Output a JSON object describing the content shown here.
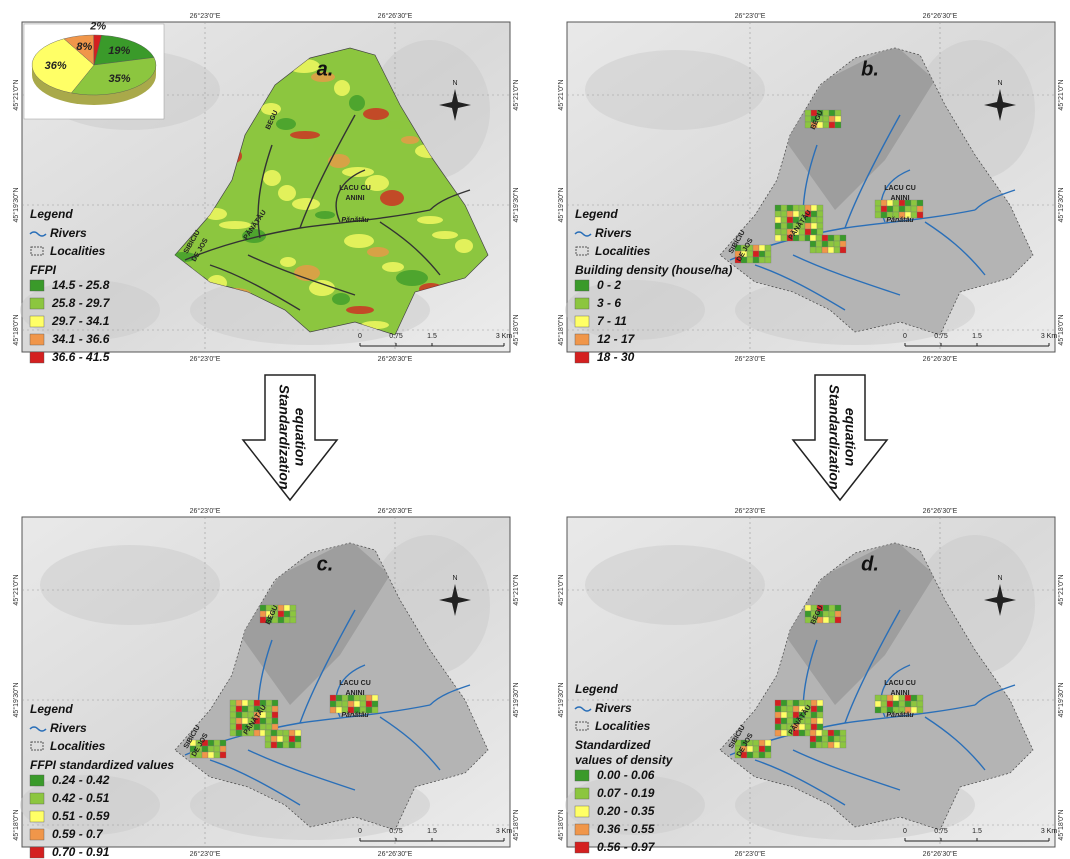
{
  "panels": [
    {
      "letter": "a.",
      "basin_color": "#8cc63f",
      "river_color": "#333333",
      "lon_labels": [
        "26°23'0\"E",
        "26°26'30\"E"
      ],
      "lat_labels": [
        "45°21'0\"N",
        "45°19'30\"N",
        "45°18'0\"N"
      ],
      "legend": {
        "title": "Legend",
        "rivers": "Rivers",
        "localities": "Localities",
        "class_title": [
          "FFPI"
        ],
        "classes": [
          {
            "label": "14.5 - 25.8",
            "color": "#3a9a2a"
          },
          {
            "label": "25.8 - 29.7",
            "color": "#8cc63f"
          },
          {
            "label": "29.7 - 34.1",
            "color": "#ffff66"
          },
          {
            "label": "34.1 - 36.6",
            "color": "#f0964a"
          },
          {
            "label": "36.6 - 41.5",
            "color": "#d42020"
          }
        ]
      },
      "scale": [
        "0",
        "0.75",
        "1.5",
        "3 Km"
      ],
      "places": [
        "BEGU",
        "PĂNĂTĂU",
        "LACU CU",
        "ANINI",
        "Pănătău",
        "SIBICIU",
        "DE JOS"
      ],
      "pie": {
        "values": [
          19,
          35,
          36,
          8,
          2
        ],
        "value_labels": [
          "19%",
          "35%",
          "36%",
          "8%",
          "2%"
        ],
        "colors": [
          "#3a9a2a",
          "#8cc63f",
          "#ffff66",
          "#f0964a",
          "#d42020"
        ]
      }
    },
    {
      "letter": "b.",
      "basin_color": "#b4b4b4",
      "river_color": "#2a6fb8",
      "lon_labels": [
        "26°23'0\"E",
        "26°26'30\"E"
      ],
      "lat_labels": [
        "45°21'0\"N",
        "45°19'30\"N",
        "45°18'0\"N"
      ],
      "legend": {
        "title": "Legend",
        "rivers": "Rivers",
        "localities": "Localities",
        "class_title": [
          "Building density (house/ha)"
        ],
        "classes": [
          {
            "label": "0 - 2",
            "color": "#3a9a2a"
          },
          {
            "label": "3 - 6",
            "color": "#8cc63f"
          },
          {
            "label": "7 - 11",
            "color": "#ffff66"
          },
          {
            "label": "12 - 17",
            "color": "#f0964a"
          },
          {
            "label": "18 - 30",
            "color": "#d42020"
          }
        ]
      },
      "scale": [
        "0",
        "0.75",
        "1.5",
        "3 Km"
      ],
      "places": [
        "BEGU",
        "PĂNĂTĂU",
        "LACU CU",
        "ANINI",
        "Pănătău",
        "SIBICIU",
        "DE JOS"
      ]
    },
    {
      "letter": "c.",
      "basin_color": "#b4b4b4",
      "river_color": "#2a6fb8",
      "lon_labels": [
        "26°23'0\"E",
        "26°26'30\"E"
      ],
      "lat_labels": [
        "45°21'0\"N",
        "45°19'30\"N",
        "45°18'0\"N"
      ],
      "legend": {
        "title": "Legend",
        "rivers": "Rivers",
        "localities": "Localities",
        "class_title": [
          "FFPI standardized values"
        ],
        "classes": [
          {
            "label": "0.24 - 0.42",
            "color": "#3a9a2a"
          },
          {
            "label": "0.42 - 0.51",
            "color": "#8cc63f"
          },
          {
            "label": "0.51 - 0.59",
            "color": "#ffff66"
          },
          {
            "label": "0.59 - 0.7",
            "color": "#f0964a"
          },
          {
            "label": "0.70 - 0.91",
            "color": "#d42020"
          }
        ]
      },
      "scale": [
        "0",
        "0.75",
        "1.5",
        "3 Km"
      ],
      "places": [
        "BEGU",
        "PĂNĂTĂU",
        "LACU CU",
        "ANINI",
        "Pănătău",
        "SIBICIU",
        "DE JOS"
      ]
    },
    {
      "letter": "d.",
      "basin_color": "#b4b4b4",
      "river_color": "#2a6fb8",
      "lon_labels": [
        "26°23'0\"E",
        "26°26'30\"E"
      ],
      "lat_labels": [
        "45°21'0\"N",
        "45°19'30\"N",
        "45°18'0\"N"
      ],
      "legend": {
        "title": "Legend",
        "rivers": "Rivers",
        "localities": "Localities",
        "class_title": [
          "Standardized",
          "values of density"
        ],
        "classes": [
          {
            "label": "0.00 - 0.06",
            "color": "#3a9a2a"
          },
          {
            "label": "0.07 - 0.19",
            "color": "#8cc63f"
          },
          {
            "label": "0.20 - 0.35",
            "color": "#ffff66"
          },
          {
            "label": "0.36 - 0.55",
            "color": "#f0964a"
          },
          {
            "label": "0.56 - 0.97",
            "color": "#d42020"
          }
        ]
      },
      "scale": [
        "0",
        "0.75",
        "1.5",
        "3 Km"
      ],
      "places": [
        "BEGU",
        "PĂNĂTĂU",
        "LACU CU",
        "ANINI",
        "Pănătău",
        "SIBICIU",
        "DE JOS"
      ]
    }
  ],
  "arrows": [
    [
      "Standardization",
      "equation"
    ],
    [
      "Standardization",
      "equation"
    ]
  ]
}
